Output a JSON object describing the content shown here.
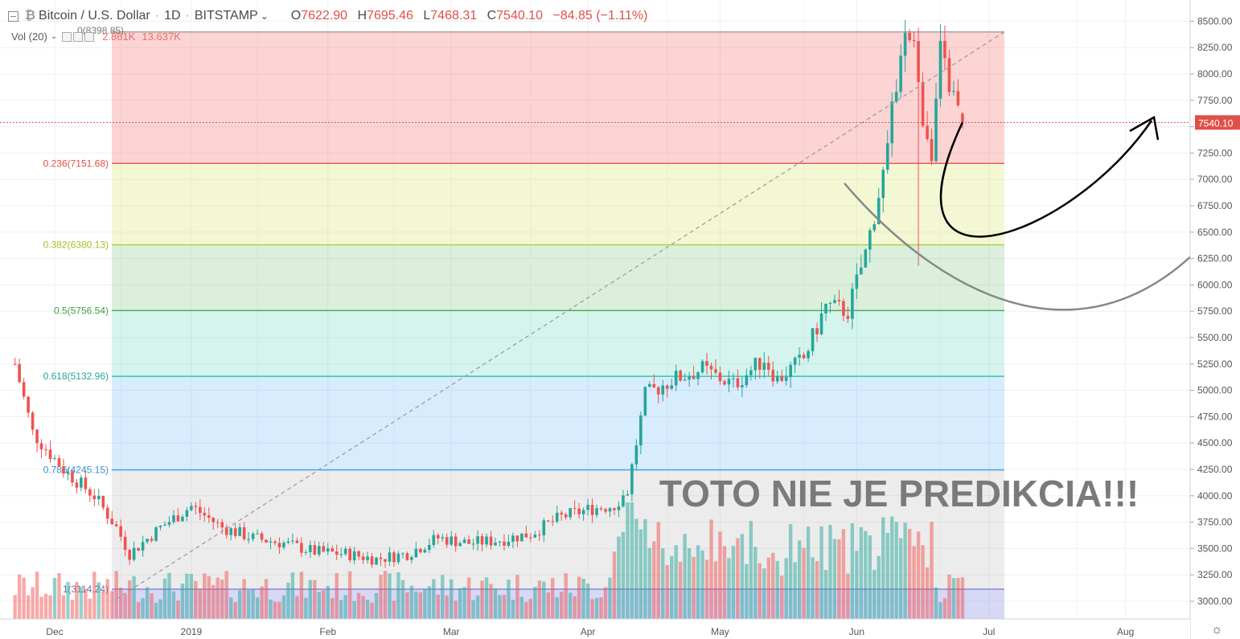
{
  "header": {
    "title": "Bitcoin / U.S. Dollar",
    "interval": "1D",
    "exchange": "BITSTAMP",
    "open_label": "O",
    "open": "7622.90",
    "high_label": "H",
    "high": "7695.46",
    "low_label": "L",
    "low": "7468.31",
    "close_label": "C",
    "close": "7540.10",
    "change": "−84.85 (−1.11%)"
  },
  "volume_indicator": {
    "label": "Vol (20)",
    "value1": "2.861K",
    "value2": "13.637K"
  },
  "annotation_text": "TOTO NIE JE PREDIKCIA!!!",
  "colors": {
    "up": "#26a69a",
    "down": "#ef5350",
    "price_line": "#e0504a",
    "arrow": "#000000",
    "arrow2": "#888888"
  },
  "chart_data": {
    "type": "candlestick",
    "symbol": "Bitcoin / U.S. Dollar",
    "y_axis": {
      "min": 2900,
      "max": 8600,
      "ticks": [
        3000,
        3250,
        3500,
        3750,
        4000,
        4250,
        4500,
        4750,
        5000,
        5250,
        5500,
        5750,
        6000,
        6250,
        6500,
        6750,
        7000,
        7250,
        7500,
        7750,
        8000,
        8250,
        8500
      ],
      "tick_labels": [
        "3000.00",
        "3250.00",
        "3500.00",
        "3750.00",
        "4000.00",
        "4250.00",
        "4500.00",
        "4750.00",
        "5000.00",
        "5250.00",
        "5500.00",
        "5750.00",
        "6000.00",
        "6250.00",
        "6500.00",
        "6750.00",
        "7000.00",
        "7250.00",
        "7500.00",
        "7750.00",
        "8000.00",
        "8250.00",
        "8500.00"
      ]
    },
    "x_axis": {
      "labels": [
        "Dec",
        "2019",
        "Feb",
        "Mar",
        "Apr",
        "May",
        "Jun",
        "Jul",
        "Aug"
      ]
    },
    "last_price": "7540.10",
    "fibonacci": [
      {
        "ratio": "0",
        "price": 8398.85,
        "label": "0(8398.85)"
      },
      {
        "ratio": "0.236",
        "price": 7151.68,
        "label": "0.236(7151.68)"
      },
      {
        "ratio": "0.382",
        "price": 6380.13,
        "label": "0.382(6380.13)"
      },
      {
        "ratio": "0.5",
        "price": 5756.54,
        "label": "0.5(5756.54)"
      },
      {
        "ratio": "0.618",
        "price": 5132.96,
        "label": "0.618(5132.96)"
      },
      {
        "ratio": "0.786",
        "price": 4245.15,
        "label": "0.786(4245.15)"
      },
      {
        "ratio": "1",
        "price": 3114.24,
        "label": "1(3114.24)"
      }
    ],
    "price_path": [
      [
        -9,
        5250
      ],
      [
        -5,
        4600
      ],
      [
        2,
        4250
      ],
      [
        9,
        4000
      ],
      [
        14,
        3700
      ],
      [
        17,
        3450
      ],
      [
        24,
        3700
      ],
      [
        31,
        3900
      ],
      [
        38,
        3700
      ],
      [
        45,
        3600
      ],
      [
        52,
        3550
      ],
      [
        59,
        3470
      ],
      [
        66,
        3450
      ],
      [
        73,
        3400
      ],
      [
        80,
        3450
      ],
      [
        87,
        3600
      ],
      [
        94,
        3550
      ],
      [
        101,
        3580
      ],
      [
        108,
        3640
      ],
      [
        115,
        3800
      ],
      [
        122,
        3880
      ],
      [
        127,
        3910
      ],
      [
        130,
        4050
      ],
      [
        134,
        4950
      ],
      [
        140,
        5100
      ],
      [
        147,
        5200
      ],
      [
        154,
        5050
      ],
      [
        161,
        5300
      ],
      [
        164,
        5100
      ],
      [
        170,
        5300
      ],
      [
        175,
        5800
      ],
      [
        180,
        5750
      ],
      [
        184,
        6300
      ],
      [
        188,
        7050
      ],
      [
        191,
        7900
      ],
      [
        193,
        8300
      ],
      [
        195,
        8200
      ],
      [
        197,
        7600
      ],
      [
        199,
        7300
      ],
      [
        201,
        8200
      ],
      [
        203,
        7900
      ],
      [
        206,
        7540
      ]
    ]
  }
}
